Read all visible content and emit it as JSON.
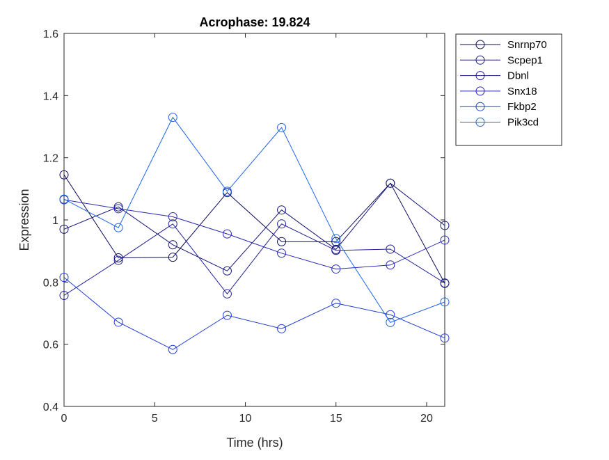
{
  "chart_data": {
    "type": "line",
    "title": "Acrophase: 19.824",
    "xlabel": "Time (hrs)",
    "ylabel": "Expression",
    "xlim": [
      0,
      21
    ],
    "ylim": [
      0.4,
      1.6
    ],
    "xticks": [
      0,
      5,
      10,
      15,
      20
    ],
    "xtick_labels": [
      "0",
      "5",
      "10",
      "15",
      "20"
    ],
    "yticks": [
      0.4,
      0.6,
      0.8,
      1.0,
      1.2,
      1.4,
      1.6
    ],
    "ytick_labels": [
      "0.4",
      "0.6",
      "0.8",
      "1",
      "1.2",
      "1.4",
      "1.6"
    ],
    "grid": false,
    "legend_position": "outside top-right",
    "marker": "circle",
    "x": [
      0,
      3,
      6,
      9,
      12,
      15,
      18,
      21
    ],
    "series": [
      {
        "name": "Snrnp70",
        "color": "#0a0a5a",
        "values": [
          1.145,
          0.878,
          0.88,
          1.088,
          0.93,
          0.93,
          1.118,
          0.796
        ]
      },
      {
        "name": "Scpep1",
        "color": "#14147a",
        "values": [
          0.97,
          1.042,
          0.92,
          0.836,
          1.032,
          0.905,
          1.118,
          0.982
        ]
      },
      {
        "name": "Dbnl",
        "color": "#1e1e96",
        "values": [
          0.757,
          0.87,
          0.987,
          0.762,
          0.987,
          0.902,
          0.906,
          0.797
        ]
      },
      {
        "name": "Snx18",
        "color": "#2828b4",
        "values": [
          1.065,
          1.036,
          1.01,
          0.955,
          0.893,
          0.842,
          0.855,
          0.935
        ]
      },
      {
        "name": "Fkbp2",
        "color": "#1e3cd2",
        "values": [
          0.815,
          0.671,
          0.583,
          0.693,
          0.65,
          0.732,
          0.695,
          0.62
        ]
      },
      {
        "name": "Pik3cd",
        "color": "#1e64e6",
        "values": [
          1.067,
          0.975,
          1.33,
          1.092,
          1.297,
          0.94,
          0.67,
          0.736
        ]
      }
    ]
  }
}
